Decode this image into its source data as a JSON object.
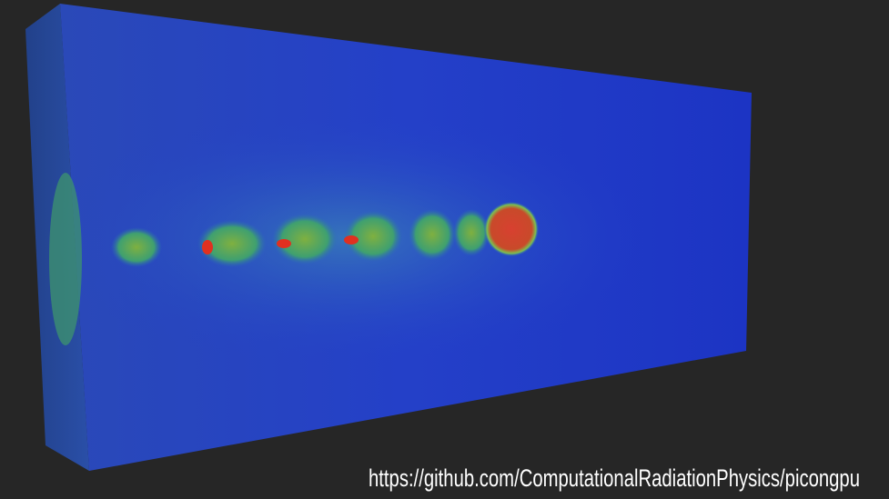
{
  "caption": "https://github.com/ComputationalRadiationPhysics/picongpu"
}
